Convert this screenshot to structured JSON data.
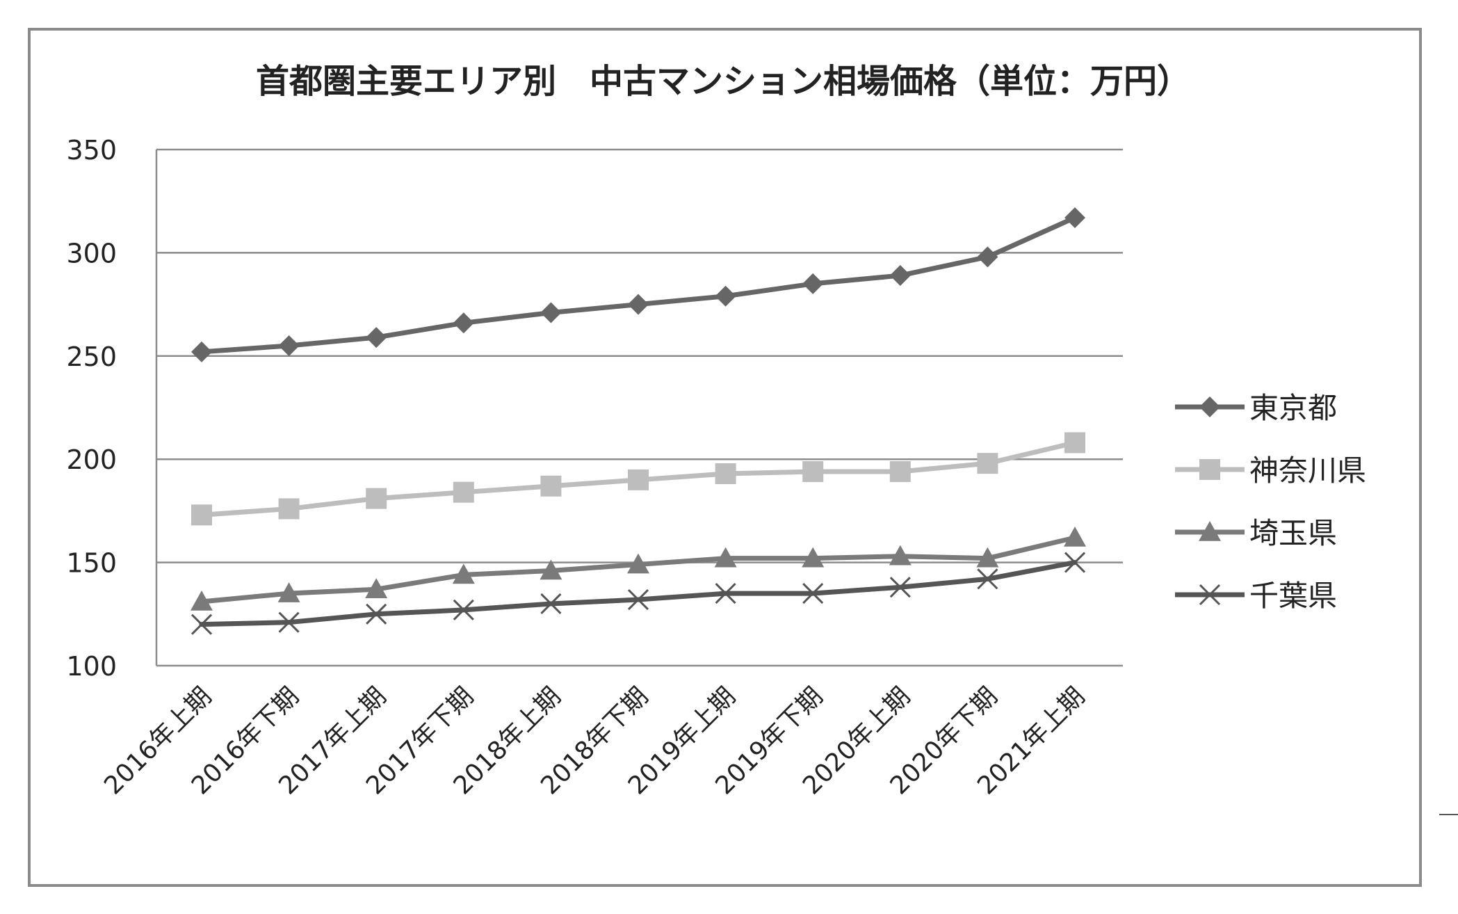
{
  "chart_data": {
    "type": "line",
    "title": "首都圏主要エリア別　中古マンション相場価格（単位：万円）",
    "xlabel": "",
    "ylabel": "",
    "ylim": [
      100,
      350
    ],
    "yticks": [
      100,
      150,
      200,
      250,
      300,
      350
    ],
    "grid": true,
    "legend_position": "right",
    "categories": [
      "2016年上期",
      "2016年下期",
      "2017年上期",
      "2017年下期",
      "2018年上期",
      "2018年下期",
      "2019年上期",
      "2019年下期",
      "2020年上期",
      "2020年下期",
      "2021年上期"
    ],
    "series": [
      {
        "name": "東京都",
        "marker": "diamond",
        "color": "#666666",
        "values": [
          252,
          255,
          259,
          266,
          271,
          275,
          279,
          285,
          289,
          298,
          317
        ]
      },
      {
        "name": "神奈川県",
        "marker": "square",
        "color": "#bdbdbd",
        "values": [
          173,
          176,
          181,
          184,
          187,
          190,
          193,
          194,
          194,
          198,
          208
        ]
      },
      {
        "name": "埼玉県",
        "marker": "triangle",
        "color": "#7a7a7a",
        "values": [
          131,
          135,
          137,
          144,
          146,
          149,
          152,
          152,
          153,
          152,
          162
        ]
      },
      {
        "name": "千葉県",
        "marker": "x",
        "color": "#555555",
        "values": [
          120,
          121,
          125,
          127,
          130,
          132,
          135,
          135,
          138,
          142,
          150
        ]
      }
    ]
  }
}
